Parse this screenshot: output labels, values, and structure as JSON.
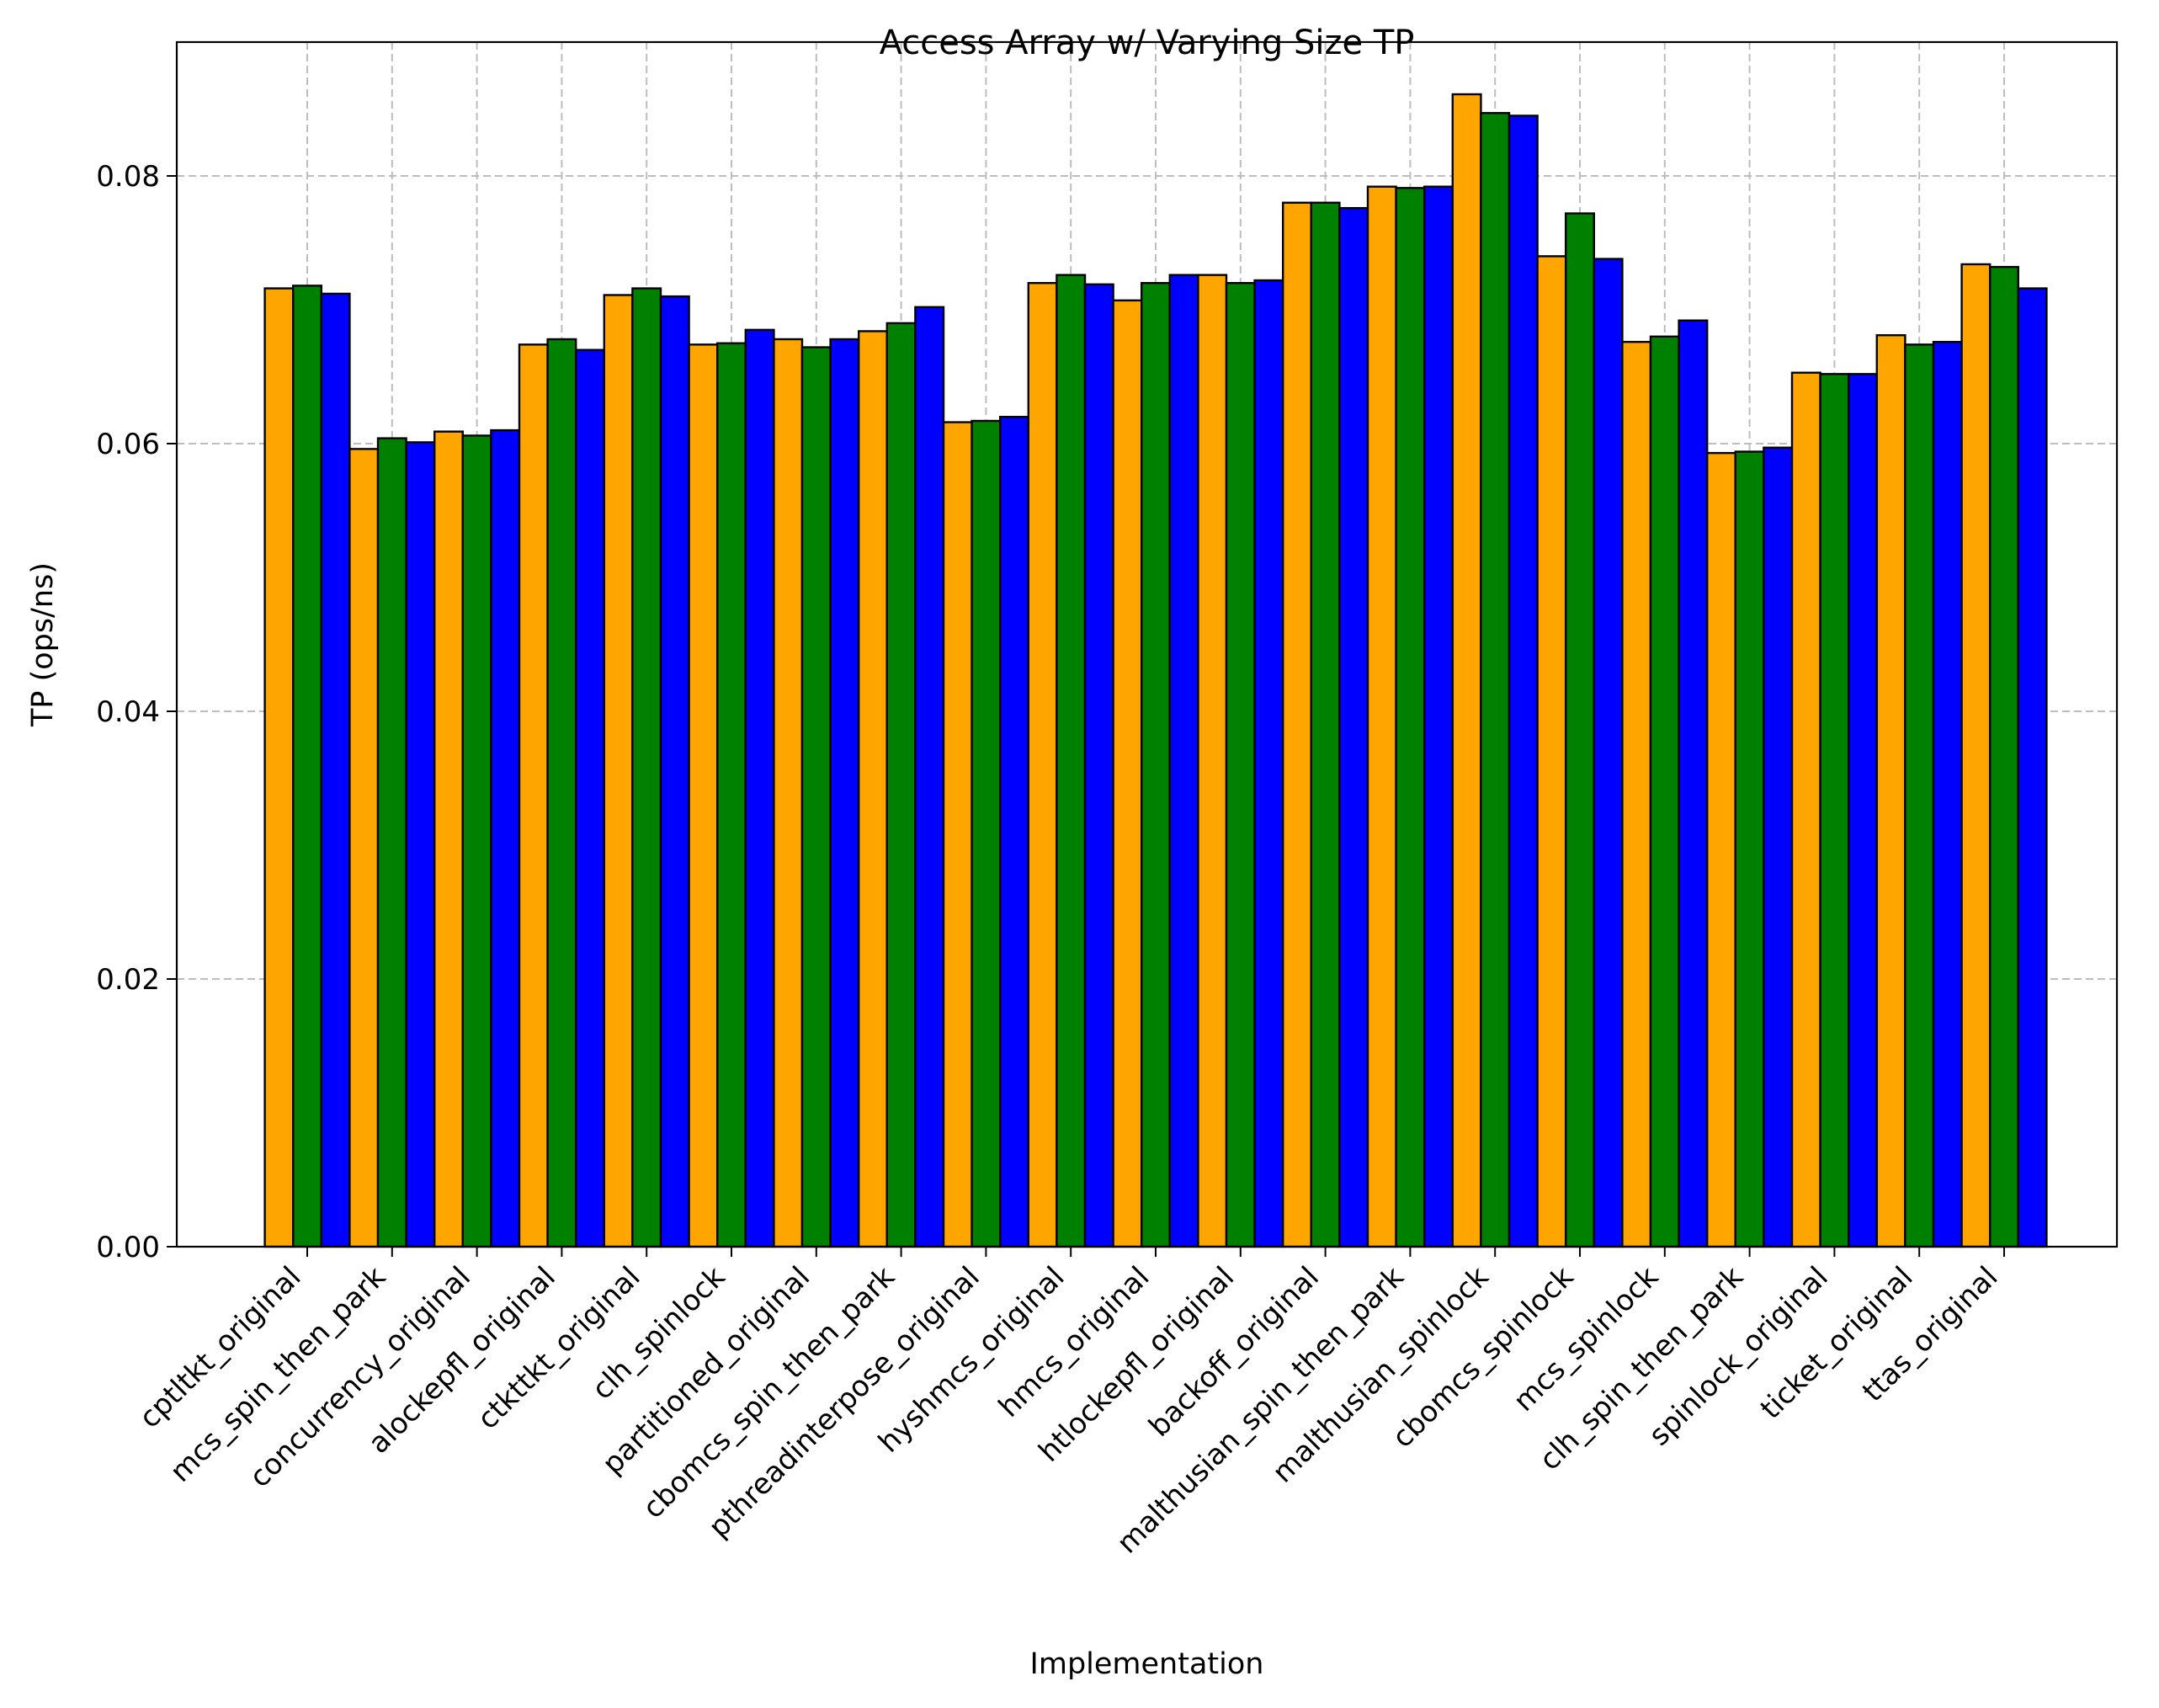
{
  "chart_data": {
    "type": "bar",
    "title": "Access Array w/ Varying Size TP",
    "xlabel": "Implementation",
    "ylabel": "TP (ops/ns)",
    "ylim": [
      0,
      0.09
    ],
    "yticks": [
      "0.00",
      "0.02",
      "0.04",
      "0.06",
      "0.08"
    ],
    "ytick_values": [
      0,
      0.02,
      0.04,
      0.06,
      0.08
    ],
    "grid": true,
    "legend": "none",
    "colors": [
      "#FFA500",
      "#008000",
      "#0000FF"
    ],
    "edge_color": "#000000",
    "categories": [
      "cptltkt_original",
      "mcs_spin_then_park",
      "concurrency_original",
      "alockepfl_original",
      "ctkttkt_original",
      "clh_spinlock",
      "partitioned_original",
      "cbomcs_spin_then_park",
      "pthreadinterpose_original",
      "hyshmcs_original",
      "hmcs_original",
      "htlockepfl_original",
      "backoff_original",
      "malthusian_spin_then_park",
      "malthusian_spinlock",
      "cbomcs_spinlock",
      "mcs_spinlock",
      "clh_spin_then_park",
      "spinlock_original",
      "ticket_original",
      "ttas_original"
    ],
    "series": [
      {
        "color": "#FFA500",
        "values": [
          0.0716,
          0.0596,
          0.0609,
          0.0674,
          0.0711,
          0.0674,
          0.0678,
          0.0684,
          0.0616,
          0.072,
          0.0707,
          0.0726,
          0.078,
          0.0792,
          0.0861,
          0.074,
          0.0676,
          0.0593,
          0.0653,
          0.0681,
          0.0734
        ]
      },
      {
        "color": "#008000",
        "values": [
          0.0718,
          0.0604,
          0.0606,
          0.0678,
          0.0716,
          0.0675,
          0.0672,
          0.069,
          0.0617,
          0.0726,
          0.072,
          0.072,
          0.078,
          0.0791,
          0.0847,
          0.0772,
          0.068,
          0.0594,
          0.0652,
          0.0674,
          0.0732
        ]
      },
      {
        "color": "#0000FF",
        "values": [
          0.0712,
          0.0601,
          0.061,
          0.067,
          0.071,
          0.0685,
          0.0678,
          0.0702,
          0.062,
          0.0719,
          0.0726,
          0.0722,
          0.0776,
          0.0792,
          0.0845,
          0.0738,
          0.0692,
          0.0597,
          0.0652,
          0.0676,
          0.0716
        ]
      }
    ]
  }
}
